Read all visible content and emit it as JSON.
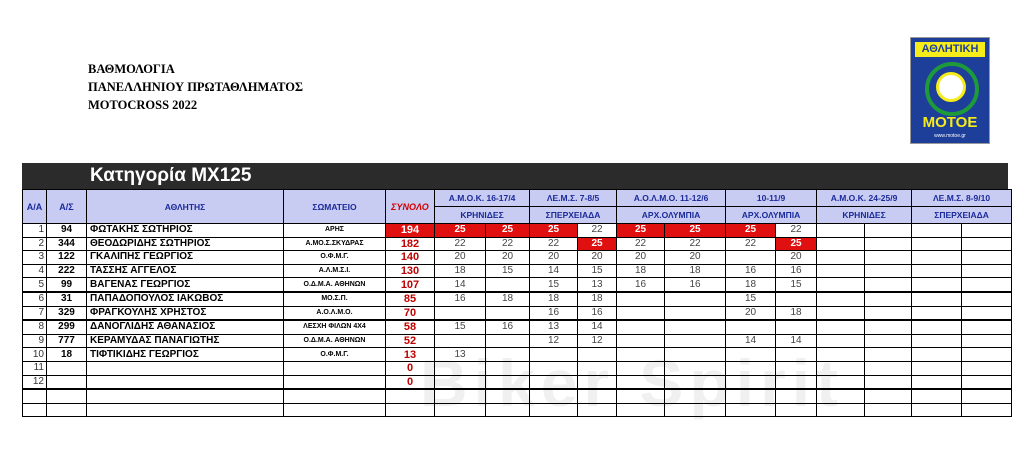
{
  "titles": [
    "ΒΑΘΜΟΛΟΓΙΑ",
    "ΠΑΝΕΛΛΗΝΙΟΥ ΠΡΩΤΑΘΛΗΜΑΤΟΣ",
    "MOTOCROSS  2022"
  ],
  "logo": {
    "top": "ΑΘΛΗΤΙΚΗ",
    "bottom": "ΜΟΤΟΕ",
    "url": "www.motoe.gr"
  },
  "category": "Κατηγορία MX125",
  "headers": {
    "aa": "Α/Α",
    "as": "Α/Σ",
    "athlete": "ΑΘΛΗΤΗΣ",
    "club": "ΣΩΜΑΤΕΙΟ",
    "total": "ΣΥΝΟΛΟ"
  },
  "events": [
    {
      "name": "Α.Μ.Ο.Κ. 16-17/4",
      "venue": "ΚΡΗΝΙΔΕΣ"
    },
    {
      "name": "ΛΕ.Μ.Σ. 7-8/5",
      "venue": "ΣΠΕΡΧΕΙΑΔΑ"
    },
    {
      "name": "Α.Ο.Λ.Μ.Ο. 11-12/6",
      "venue": "ΑΡΧ.ΟΛΥΜΠΙΑ"
    },
    {
      "name": "10-11/9",
      "venue": "ΑΡΧ.ΟΛΥΜΠΙΑ"
    },
    {
      "name": "Α.Μ.Ο.Κ. 24-25/9",
      "venue": "ΚΡΗΝΙΔΕΣ"
    },
    {
      "name": "ΛΕ.Μ.Σ. 8-9/10",
      "venue": "ΣΠΕΡΧΕΙΑΔΑ"
    }
  ],
  "colors": {
    "highlight": "#e01010",
    "header_bg": "#c9ccf2",
    "total_text": "#c00000"
  },
  "rows": [
    {
      "aa": "1",
      "as": "94",
      "name": "ΦΩΤΑΚΗΣ ΣΩΤΗΡΙΟΣ",
      "club": "ΑΡΗΣ",
      "total": "194",
      "total_hl": true,
      "scores": [
        "25",
        "25",
        "25",
        "22",
        "25",
        "25",
        "25",
        "22",
        "",
        "",
        "",
        ""
      ],
      "hl": [
        0,
        1,
        2,
        4,
        5,
        6
      ]
    },
    {
      "aa": "2",
      "as": "344",
      "name": "ΘΕΟΔΩΡΙΔΗΣ ΣΩΤΗΡΙΟΣ",
      "club": "Α.ΜΟ.Σ.ΣΚΥΔΡΑΣ",
      "total": "182",
      "scores": [
        "22",
        "22",
        "22",
        "25",
        "22",
        "22",
        "22",
        "25",
        "",
        "",
        "",
        ""
      ],
      "hl": [
        3,
        7
      ]
    },
    {
      "aa": "3",
      "as": "122",
      "name": "ΓΚΑΛΙΠΗΣ ΓΕΩΡΓΙΟΣ",
      "club": "Ο.Φ.Μ.Γ.",
      "total": "140",
      "scores": [
        "20",
        "20",
        "20",
        "20",
        "20",
        "20",
        "",
        "20",
        "",
        "",
        "",
        ""
      ],
      "hl": []
    },
    {
      "aa": "4",
      "as": "222",
      "name": "ΤΑΣΣΗΣ ΑΓΓΕΛΟΣ",
      "club": "Α.Λ.Μ.Σ.Ι.",
      "total": "130",
      "scores": [
        "18",
        "15",
        "14",
        "15",
        "18",
        "18",
        "16",
        "16",
        "",
        "",
        "",
        ""
      ],
      "hl": []
    },
    {
      "aa": "5",
      "as": "99",
      "name": "ΒΑΓΕΝΑΣ ΓΕΩΡΓΙΟΣ",
      "club": "Ο.Δ.Μ.Α. ΑΘΗΝΩΝ",
      "total": "107",
      "scores": [
        "14",
        "",
        "15",
        "13",
        "16",
        "16",
        "18",
        "15",
        "",
        "",
        "",
        ""
      ],
      "hl": []
    },
    {
      "aa": "6",
      "as": "31",
      "name": "ΠΑΠΑΔΟΠΟΥΛΟΣ ΙΑΚΩΒΟΣ",
      "club": "ΜΟ.Σ.Π.",
      "total": "85",
      "scores": [
        "16",
        "18",
        "18",
        "18",
        "",
        "",
        "15",
        "",
        "",
        "",
        "",
        ""
      ],
      "hl": []
    },
    {
      "aa": "7",
      "as": "329",
      "name": "ΦΡΑΓΚΟΥΛΗΣ ΧΡΗΣΤΟΣ",
      "club": "Α.Ο.Λ.Μ.Ο.",
      "total": "70",
      "scores": [
        "",
        "",
        "16",
        "16",
        "",
        "",
        "20",
        "18",
        "",
        "",
        "",
        ""
      ],
      "hl": []
    },
    {
      "aa": "8",
      "as": "299",
      "name": "ΔΑΝΟΓΛΙΔΗΣ ΑΘΑΝΑΣΙΟΣ",
      "club": "ΛΕΣΧΗ ΦΙΛΩΝ 4Χ4",
      "total": "58",
      "scores": [
        "15",
        "16",
        "13",
        "14",
        "",
        "",
        "",
        "",
        "",
        "",
        "",
        ""
      ],
      "hl": []
    },
    {
      "aa": "9",
      "as": "777",
      "name": "ΚΕΡΑΜΥΔΑΣ ΠΑΝΑΓΙΩΤΗΣ",
      "club": "Ο.Δ.Μ.Α. ΑΘΗΝΩΝ",
      "total": "52",
      "scores": [
        "",
        "",
        "12",
        "12",
        "",
        "",
        "14",
        "14",
        "",
        "",
        "",
        ""
      ],
      "hl": []
    },
    {
      "aa": "10",
      "as": "18",
      "name": "ΤΙΦΤΙΚΙΔΗΣ ΓΕΩΡΓΙΟΣ",
      "club": "Ο.Φ.Μ.Γ.",
      "total": "13",
      "scores": [
        "13",
        "",
        "",
        "",
        "",
        "",
        "",
        "",
        "",
        "",
        "",
        ""
      ],
      "hl": []
    },
    {
      "aa": "11",
      "as": "",
      "name": "",
      "club": "",
      "total": "0",
      "scores": [
        "",
        "",
        "",
        "",
        "",
        "",
        "",
        "",
        "",
        "",
        "",
        ""
      ],
      "hl": []
    },
    {
      "aa": "12",
      "as": "",
      "name": "",
      "club": "",
      "total": "0",
      "scores": [
        "",
        "",
        "",
        "",
        "",
        "",
        "",
        "",
        "",
        "",
        "",
        ""
      ],
      "hl": []
    },
    {
      "aa": "",
      "as": "",
      "name": "",
      "club": "",
      "total": "",
      "scores": [
        "",
        "",
        "",
        "",
        "",
        "",
        "",
        "",
        "",
        "",
        "",
        ""
      ],
      "hl": []
    },
    {
      "aa": "",
      "as": "",
      "name": "",
      "club": "",
      "total": "",
      "scores": [
        "",
        "",
        "",
        "",
        "",
        "",
        "",
        "",
        "",
        "",
        "",
        ""
      ],
      "hl": []
    }
  ]
}
